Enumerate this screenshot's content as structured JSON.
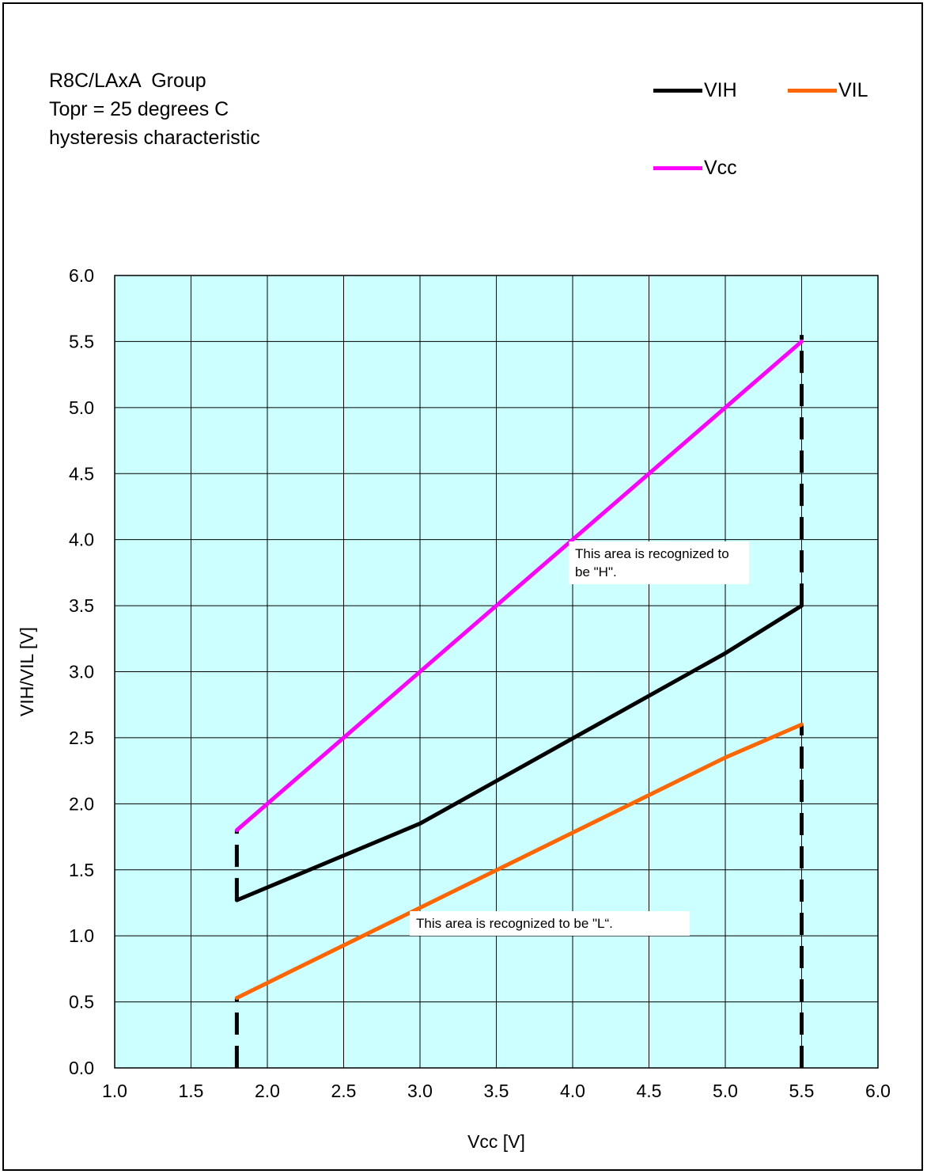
{
  "header": {
    "title_lines": [
      "R8C/LAxA  Group",
      "Topr = 25 degrees C",
      "hysteresis characteristic"
    ]
  },
  "notes": {
    "high_area": "This area is recognized to be \"H\".",
    "low_area": "This area is recognized to be \"L“."
  },
  "chart_data": {
    "type": "line",
    "xlabel": "Vcc [V]",
    "ylabel": "VIH/VIL [V]",
    "xlim": [
      1.0,
      6.0
    ],
    "ylim": [
      0.0,
      6.0
    ],
    "x_ticks": [
      "1.0",
      "1.5",
      "2.0",
      "2.5",
      "3.0",
      "3.5",
      "4.0",
      "4.5",
      "5.0",
      "5.5",
      "6.0"
    ],
    "y_ticks": [
      "0.0",
      "0.5",
      "1.0",
      "1.5",
      "2.0",
      "2.5",
      "3.0",
      "3.5",
      "4.0",
      "4.5",
      "5.0",
      "5.5",
      "6.0"
    ],
    "grid": true,
    "plot_background": "#ccffff",
    "legend_position": "top-right",
    "series": [
      {
        "name": "VIH",
        "color": "#000000",
        "x": [
          1.8,
          3.0,
          5.0,
          5.5
        ],
        "y": [
          1.27,
          1.85,
          3.14,
          3.5
        ]
      },
      {
        "name": "VIL",
        "color": "#ff6600",
        "x": [
          1.8,
          5.0,
          5.5
        ],
        "y": [
          0.53,
          2.35,
          2.6
        ]
      },
      {
        "name": "Vcc",
        "color": "#ff00ff",
        "x": [
          1.8,
          5.5
        ],
        "y": [
          1.8,
          5.5
        ]
      }
    ],
    "boundary_lines": [
      {
        "x": 1.8,
        "y_from": 0.0,
        "y_to": 0.53
      },
      {
        "x": 1.8,
        "y_from": 1.27,
        "y_to": 1.8
      },
      {
        "x": 5.5,
        "y_from": 0.0,
        "y_to": 2.6
      },
      {
        "x": 5.5,
        "y_from": 3.5,
        "y_to": 5.55
      }
    ]
  }
}
